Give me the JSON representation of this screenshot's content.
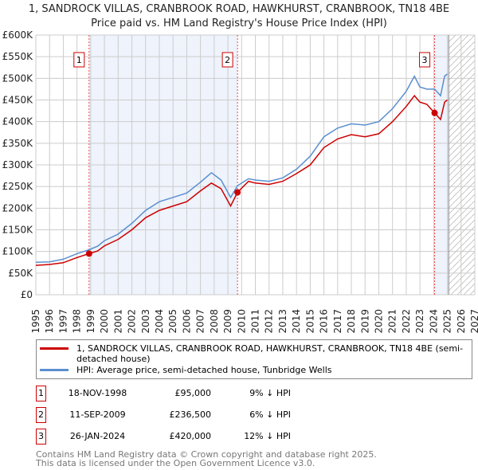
{
  "chart_data": {
    "type": "line",
    "title": "1, SANDROCK VILLAS, CRANBROOK ROAD, HAWKHURST, CRANBROOK, TN18 4BE",
    "subtitle": "Price paid vs. HM Land Registry's House Price Index (HPI)",
    "xlim": [
      1995,
      2027
    ],
    "ylim": [
      0,
      600000
    ],
    "x_ticks": [
      "1995",
      "1996",
      "1997",
      "1998",
      "1999",
      "2000",
      "2001",
      "2002",
      "2003",
      "2004",
      "2005",
      "2006",
      "2007",
      "2008",
      "2009",
      "2010",
      "2011",
      "2012",
      "2013",
      "2014",
      "2015",
      "2016",
      "2017",
      "2018",
      "2019",
      "2020",
      "2021",
      "2022",
      "2023",
      "2024",
      "2025",
      "2026",
      "2027"
    ],
    "y_ticks": [
      "£0",
      "£50K",
      "£100K",
      "£150K",
      "£200K",
      "£250K",
      "£300K",
      "£350K",
      "£400K",
      "£450K",
      "£500K",
      "£550K",
      "£600K"
    ],
    "x": [
      1995,
      1996,
      1997,
      1998,
      1998.88,
      1999.5,
      2000,
      2001,
      2002,
      2003,
      2004,
      2005,
      2006,
      2007,
      2007.8,
      2008.5,
      2009.2,
      2009.7,
      2010.5,
      2011,
      2012,
      2013,
      2014,
      2015,
      2016,
      2017,
      2018,
      2019,
      2020,
      2021,
      2022,
      2022.6,
      2023,
      2023.5,
      2024.07,
      2024.5,
      2024.8,
      2025.0
    ],
    "series": [
      {
        "name": "1, SANDROCK VILLAS, CRANBROOK ROAD, HAWKHURST, CRANBROOK, TN18 4BE (semi-detached house)",
        "color": "#cc0000",
        "values": [
          68000,
          70000,
          74000,
          86000,
          95000,
          101000,
          113000,
          128000,
          150000,
          178000,
          195000,
          205000,
          215000,
          240000,
          258000,
          245000,
          205000,
          236500,
          262000,
          258000,
          255000,
          262000,
          280000,
          300000,
          340000,
          360000,
          370000,
          365000,
          372000,
          400000,
          435000,
          460000,
          445000,
          440000,
          420000,
          405000,
          445000,
          450000
        ]
      },
      {
        "name": "HPI: Average price, semi-detached house, Tunbridge Wells",
        "color": "#5b8fd0",
        "values": [
          75000,
          76000,
          82000,
          95000,
          104000,
          112000,
          125000,
          140000,
          165000,
          195000,
          215000,
          225000,
          235000,
          260000,
          282000,
          265000,
          225000,
          252000,
          268000,
          265000,
          262000,
          270000,
          290000,
          320000,
          365000,
          385000,
          395000,
          392000,
          400000,
          430000,
          470000,
          505000,
          480000,
          475000,
          475000,
          460000,
          505000,
          510000
        ]
      }
    ],
    "sales": [
      {
        "n": "1",
        "date": "18-NOV-1998",
        "price": "£95,000",
        "hpi": "9% ↓ HPI",
        "x": 1998.88,
        "y": 95000
      },
      {
        "n": "2",
        "date": "11-SEP-2009",
        "price": "£236,500",
        "hpi": "6% ↓ HPI",
        "x": 2009.7,
        "y": 236500
      },
      {
        "n": "3",
        "date": "26-JAN-2024",
        "price": "£420,000",
        "hpi": "12% ↓ HPI",
        "x": 2024.07,
        "y": 420000
      }
    ],
    "forecast_from": 2025.1
  },
  "footer": {
    "line1": "Contains HM Land Registry data © Crown copyright and database right 2025.",
    "line2": "This data is licensed under the Open Government Licence v3.0."
  }
}
